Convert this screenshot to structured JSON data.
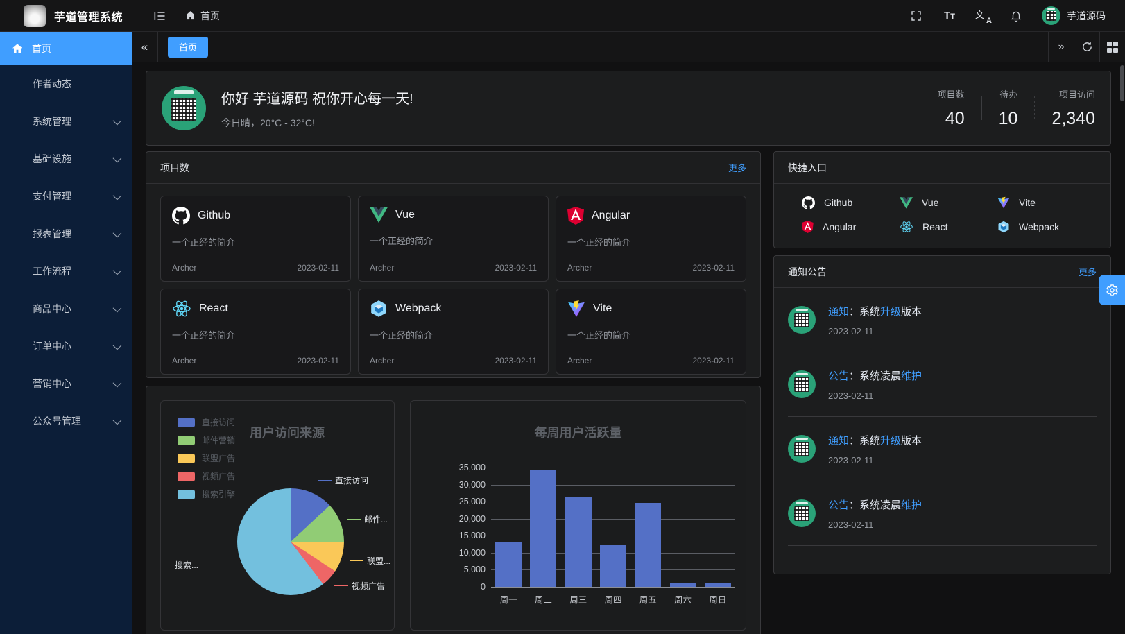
{
  "header": {
    "title": "芋道管理系统",
    "breadcrumb": "首页",
    "username": "芋道源码",
    "icons": [
      "fullscreen-icon",
      "font-size-icon",
      "locale-icon",
      "bell-icon"
    ]
  },
  "tabbar": {
    "tabs": [
      {
        "label": "首页",
        "active": true
      }
    ]
  },
  "sidebar": {
    "items": [
      {
        "label": "首页",
        "active": true,
        "icon": "home-icon"
      },
      {
        "label": "作者动态",
        "submenu": false
      },
      {
        "label": "系统管理",
        "submenu": true
      },
      {
        "label": "基础设施",
        "submenu": true
      },
      {
        "label": "支付管理",
        "submenu": true
      },
      {
        "label": "报表管理",
        "submenu": true
      },
      {
        "label": "工作流程",
        "submenu": true
      },
      {
        "label": "商品中心",
        "submenu": true
      },
      {
        "label": "订单中心",
        "submenu": true
      },
      {
        "label": "营销中心",
        "submenu": true
      },
      {
        "label": "公众号管理",
        "submenu": true
      }
    ]
  },
  "greeting": {
    "title": "你好 芋道源码 祝你开心每一天!",
    "subtitle": "今日晴，20°C - 32°C!",
    "stats": [
      {
        "label": "项目数",
        "value": "40"
      },
      {
        "label": "待办",
        "value": "10"
      },
      {
        "label": "项目访问",
        "value": "2,340"
      }
    ]
  },
  "projects": {
    "title": "项目数",
    "more": "更多",
    "cards": [
      {
        "name": "Github",
        "icon": "github-icon",
        "desc": "一个正经的简介",
        "author": "Archer",
        "date": "2023-02-11"
      },
      {
        "name": "Vue",
        "icon": "vue-icon",
        "desc": "一个正经的简介",
        "author": "Archer",
        "date": "2023-02-11"
      },
      {
        "name": "Angular",
        "icon": "angular-icon",
        "desc": "一个正经的简介",
        "author": "Archer",
        "date": "2023-02-11"
      },
      {
        "name": "React",
        "icon": "react-icon",
        "desc": "一个正经的简介",
        "author": "Archer",
        "date": "2023-02-11"
      },
      {
        "name": "Webpack",
        "icon": "webpack-icon",
        "desc": "一个正经的简介",
        "author": "Archer",
        "date": "2023-02-11"
      },
      {
        "name": "Vite",
        "icon": "vite-icon",
        "desc": "一个正经的简介",
        "author": "Archer",
        "date": "2023-02-11"
      }
    ]
  },
  "chart_data": [
    {
      "type": "pie",
      "title": "用户访问来源",
      "legend_position": "left",
      "legend": [
        "直接访问",
        "邮件营销",
        "联盟广告",
        "视频广告",
        "搜索引擎"
      ],
      "series": [
        {
          "name": "直接访问",
          "value": 335
        },
        {
          "name": "邮件营销",
          "value": 310
        },
        {
          "name": "联盟广告",
          "value": 234
        },
        {
          "name": "视频广告",
          "value": 135
        },
        {
          "name": "搜索引擎",
          "value": 1548
        }
      ],
      "colors": [
        "#5470c6",
        "#91cc75",
        "#fac858",
        "#ee6666",
        "#73c0de"
      ],
      "callouts": [
        "直接访问",
        "邮件...",
        "联盟...",
        "视频广告",
        "搜索..."
      ]
    },
    {
      "type": "bar",
      "title": "每周用户活跃量",
      "categories": [
        "周一",
        "周二",
        "周三",
        "周四",
        "周五",
        "周六",
        "周日"
      ],
      "values": [
        13253,
        34235,
        26321,
        12340,
        24643,
        1322,
        1324
      ],
      "ylim": [
        0,
        35000
      ],
      "ytick_step": 5000,
      "bar_color": "#5470c6",
      "grid": true,
      "xlabel": "",
      "ylabel": ""
    }
  ],
  "shortcuts": {
    "title": "快捷入口",
    "items": [
      {
        "label": "Github",
        "icon": "github-icon"
      },
      {
        "label": "Vue",
        "icon": "vue-icon"
      },
      {
        "label": "Vite",
        "icon": "vite-icon"
      },
      {
        "label": "Angular",
        "icon": "angular-icon"
      },
      {
        "label": "React",
        "icon": "react-icon"
      },
      {
        "label": "Webpack",
        "icon": "webpack-icon"
      }
    ]
  },
  "notices": {
    "title": "通知公告",
    "more": "更多",
    "items": [
      {
        "tag": "通知",
        "mid": "：系统",
        "link": "升级",
        "tail": "版本",
        "date": "2023-02-11"
      },
      {
        "tag": "公告",
        "mid": "：系统凌晨",
        "link": "维护",
        "tail": "",
        "date": "2023-02-11"
      },
      {
        "tag": "通知",
        "mid": "：系统",
        "link": "升级",
        "tail": "版本",
        "date": "2023-02-11"
      },
      {
        "tag": "公告",
        "mid": "：系统凌晨",
        "link": "维护",
        "tail": "",
        "date": "2023-02-11"
      }
    ]
  }
}
